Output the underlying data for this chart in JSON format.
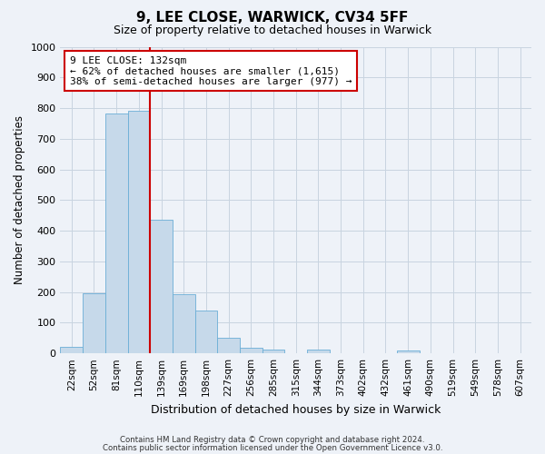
{
  "title": "9, LEE CLOSE, WARWICK, CV34 5FF",
  "subtitle": "Size of property relative to detached houses in Warwick",
  "xlabel": "Distribution of detached houses by size in Warwick",
  "ylabel": "Number of detached properties",
  "bar_labels": [
    "22sqm",
    "52sqm",
    "81sqm",
    "110sqm",
    "139sqm",
    "169sqm",
    "198sqm",
    "227sqm",
    "256sqm",
    "285sqm",
    "315sqm",
    "344sqm",
    "373sqm",
    "402sqm",
    "432sqm",
    "461sqm",
    "490sqm",
    "519sqm",
    "549sqm",
    "578sqm",
    "607sqm"
  ],
  "bar_values": [
    20,
    197,
    783,
    790,
    435,
    193,
    141,
    50,
    18,
    11,
    0,
    11,
    0,
    0,
    0,
    10,
    0,
    0,
    0,
    0,
    0
  ],
  "bar_color": "#c6d9ea",
  "bar_edge_color": "#6baed6",
  "grid_color": "#c8d4e0",
  "background_color": "#eef2f8",
  "vline_x_index": 4,
  "vline_color": "#cc0000",
  "annotation_title": "9 LEE CLOSE: 132sqm",
  "annotation_line1": "← 62% of detached houses are smaller (1,615)",
  "annotation_line2": "38% of semi-detached houses are larger (977) →",
  "annotation_box_edgecolor": "#cc0000",
  "ylim": [
    0,
    1000
  ],
  "yticks": [
    0,
    100,
    200,
    300,
    400,
    500,
    600,
    700,
    800,
    900,
    1000
  ],
  "footer1": "Contains HM Land Registry data © Crown copyright and database right 2024.",
  "footer2": "Contains public sector information licensed under the Open Government Licence v3.0."
}
